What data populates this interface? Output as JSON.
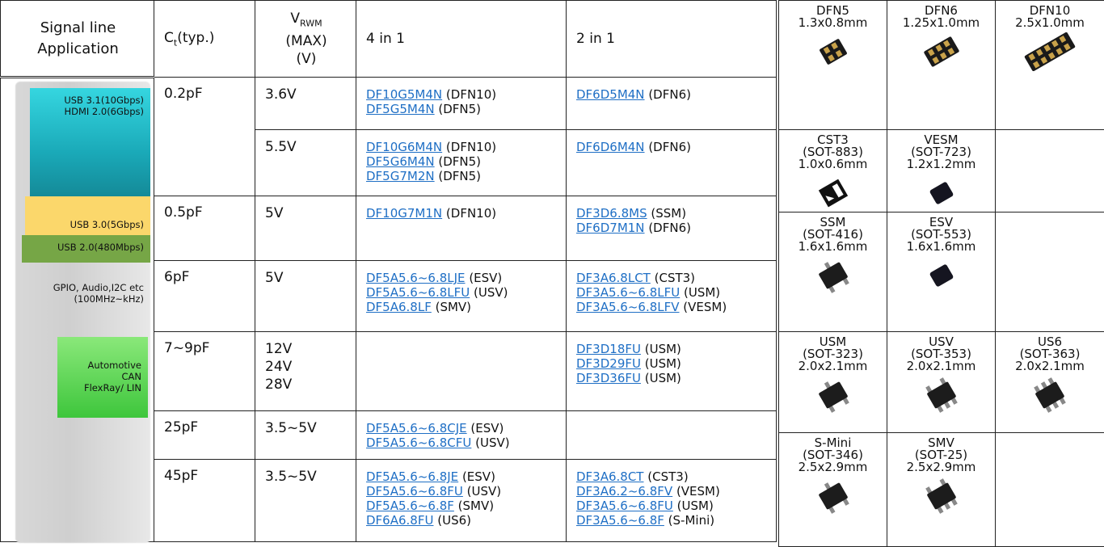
{
  "header": {
    "signal_line": "Signal line",
    "application": "Application",
    "ct": {
      "main": "C",
      "sub": "t",
      "rest": "(typ.)"
    },
    "vrwm": {
      "main": "V",
      "sub": "RWM",
      "lines": [
        "(MAX)",
        "(V)"
      ]
    },
    "four_in_one": "4 in 1",
    "two_in_one": "2 in 1"
  },
  "applications": [
    {
      "lines": [
        "USB 3.1(10Gbps)",
        "HDMI 2.0(6Gbps)"
      ]
    },
    {
      "lines": [
        "USB 3.0(5Gbps)"
      ]
    },
    {
      "lines": [
        "USB 2.0(480Mbps)"
      ]
    },
    {
      "lines": [
        "GPIO, Audio,I2C etc",
        "(100MHz~kHz)"
      ]
    },
    {
      "lines": [
        "Automotive",
        "CAN",
        "FlexRay/ LIN"
      ]
    }
  ],
  "rows": [
    {
      "ct": "0.2pF",
      "vrwm": [
        "3.6V"
      ],
      "four": [
        {
          "part": "DF10G5M4N",
          "pkg": "(DFN10)"
        },
        {
          "part": "DF5G5M4N",
          "pkg": "(DFN5)"
        }
      ],
      "two": [
        {
          "part": "DF6D5M4N",
          "pkg": "(DFN6)"
        }
      ]
    },
    {
      "vrwm": [
        "5.5V"
      ],
      "four": [
        {
          "part": "DF10G6M4N",
          "pkg": "(DFN10)"
        },
        {
          "part": "DF5G6M4N",
          "pkg": "(DFN5)"
        },
        {
          "part": "DF5G7M2N",
          "pkg": "(DFN5)"
        }
      ],
      "two": [
        {
          "part": "DF6D6M4N",
          "pkg": "(DFN6)"
        }
      ]
    },
    {
      "ct": "0.5pF",
      "vrwm": [
        "5V"
      ],
      "four": [
        {
          "part": "DF10G7M1N",
          "pkg": "(DFN10)"
        }
      ],
      "two": [
        {
          "part": "DF3D6.8MS",
          "pkg": "(SSM)"
        },
        {
          "part": "DF6D7M1N",
          "pkg": "(DFN6)"
        }
      ]
    },
    {
      "ct": "6pF",
      "vrwm": [
        "5V"
      ],
      "four": [
        {
          "part": "DF5A5.6~6.8LJE",
          "pkg": "(ESV)"
        },
        {
          "part": "DF5A5.6~6.8LFU",
          "pkg": "(USV)"
        },
        {
          "part": "DF5A6.8LF",
          "pkg": "(SMV)"
        }
      ],
      "two": [
        {
          "part": "DF3A6.8LCT",
          "pkg": "(CST3)"
        },
        {
          "part": "DF3A5.6~6.8LFU",
          "pkg": "(USM)"
        },
        {
          "part": "DF3A5.6~6.8LFV",
          "pkg": "(VESM)"
        }
      ]
    },
    {
      "ct": "7~9pF",
      "vrwm": [
        "12V",
        "24V",
        "28V"
      ],
      "four": [],
      "two": [
        {
          "part": "DF3D18FU",
          "pkg": "(USM)"
        },
        {
          "part": "DF3D29FU",
          "pkg": "(USM)"
        },
        {
          "part": "DF3D36FU",
          "pkg": "(USM)"
        }
      ]
    },
    {
      "ct": "25pF",
      "vrwm": [
        "3.5~5V"
      ],
      "four": [
        {
          "part": "DF5A5.6~6.8CJE",
          "pkg": "(ESV)"
        },
        {
          "part": "DF5A5.6~6.8CFU",
          "pkg": "(USV)"
        }
      ],
      "two": []
    },
    {
      "ct": "45pF",
      "vrwm": [
        "3.5~5V"
      ],
      "four": [
        {
          "part": "DF5A5.6~6.8JE",
          "pkg": "(ESV)"
        },
        {
          "part": "DF5A5.6~6.8FU",
          "pkg": "(USV)"
        },
        {
          "part": "DF5A5.6~6.8F",
          "pkg": "(SMV)"
        },
        {
          "part": "DF6A6.8FU",
          "pkg": "(US6)"
        }
      ],
      "two": [
        {
          "part": "DF3A6.8CT",
          "pkg": "(CST3)"
        },
        {
          "part": "DF3A6.2~6.8FV",
          "pkg": "(VESM)"
        },
        {
          "part": "DF3A5.6~6.8FU",
          "pkg": "(USM)"
        },
        {
          "part": "DF3A5.6~6.8F",
          "pkg": "(S-Mini)"
        }
      ]
    }
  ],
  "packages": [
    [
      {
        "lines": [
          "DFN5",
          "1.3x0.8mm"
        ]
      },
      {
        "lines": [
          "DFN6",
          "1.25x1.0mm"
        ]
      },
      {
        "lines": [
          "DFN10",
          "2.5x1.0mm"
        ]
      }
    ],
    [
      {
        "lines": [
          "CST3",
          "(SOT-883)",
          "1.0x0.6mm"
        ]
      },
      {
        "lines": [
          "VESM",
          "(SOT-723)",
          "1.2x1.2mm"
        ]
      }
    ],
    [
      {
        "lines": [
          "SSM",
          "(SOT-416)",
          "1.6x1.6mm"
        ]
      },
      {
        "lines": [
          "ESV",
          "(SOT-553)",
          "1.6x1.6mm"
        ]
      }
    ],
    [
      {
        "lines": [
          "USM",
          "(SOT-323)",
          "2.0x2.1mm"
        ]
      },
      {
        "lines": [
          "USV",
          "(SOT-353)",
          "2.0x2.1mm"
        ]
      },
      {
        "lines": [
          "US6",
          "(SOT-363)",
          "2.0x2.1mm"
        ]
      }
    ],
    [
      {
        "lines": [
          "S-Mini",
          "(SOT-346)",
          "2.5x2.9mm"
        ]
      },
      {
        "lines": [
          "SMV",
          "(SOT-25)",
          "2.5x2.9mm"
        ]
      }
    ]
  ]
}
